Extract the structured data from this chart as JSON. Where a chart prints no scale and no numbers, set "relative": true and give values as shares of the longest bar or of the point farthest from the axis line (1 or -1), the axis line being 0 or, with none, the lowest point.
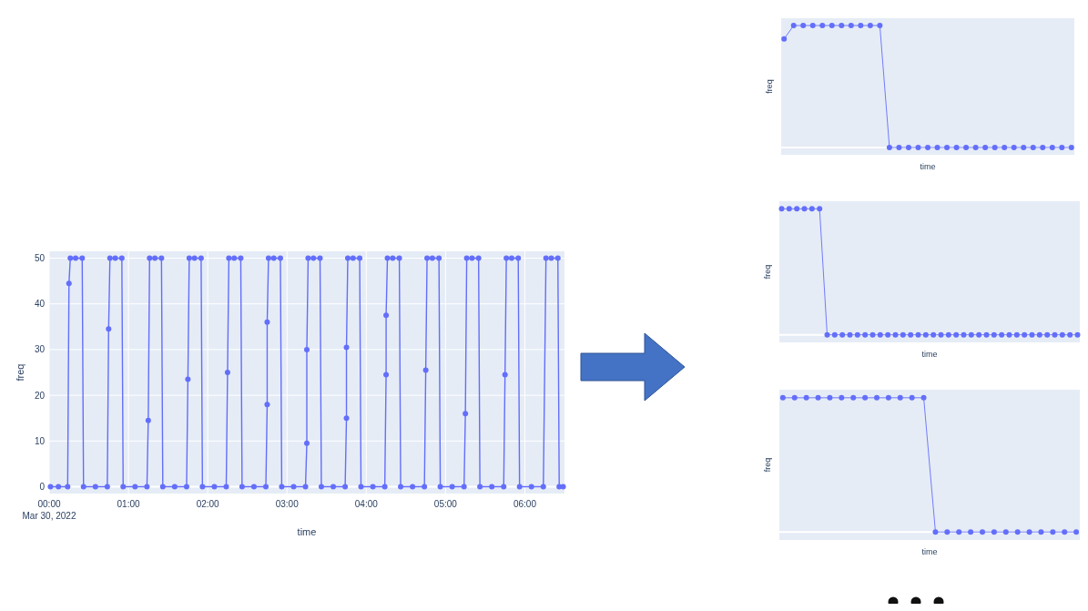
{
  "chart_data": [
    {
      "type": "line",
      "xlabel": "time",
      "ylabel": "freq",
      "marker": "circle",
      "grid": true,
      "xlim": [
        "2022-03-30T00:00",
        "2022-03-30T06:30"
      ],
      "xticks": [
        {
          "value": "2022-03-30T00:00",
          "label": "00:00\nMar 30, 2022"
        },
        {
          "value": "2022-03-30T01:00",
          "label": "01:00"
        },
        {
          "value": "2022-03-30T02:00",
          "label": "02:00"
        },
        {
          "value": "2022-03-30T03:00",
          "label": "03:00"
        },
        {
          "value": "2022-03-30T04:00",
          "label": "04:00"
        },
        {
          "value": "2022-03-30T05:00",
          "label": "05:00"
        },
        {
          "value": "2022-03-30T06:00",
          "label": "06:00"
        }
      ],
      "ylim": [
        -1.5,
        51.5
      ],
      "yticks": [
        0,
        10,
        20,
        30,
        40,
        50
      ],
      "series": [
        {
          "color": "#636efa",
          "x": [
            "2022-03-30T00:01",
            "2022-03-30T00:07",
            "2022-03-30T00:14",
            "2022-03-30T00:15",
            "2022-03-30T00:16",
            "2022-03-30T00:20",
            "2022-03-30T00:25",
            "2022-03-30T00:26",
            "2022-03-30T00:35",
            "2022-03-30T00:44",
            "2022-03-30T00:45",
            "2022-03-30T00:46",
            "2022-03-30T00:50",
            "2022-03-30T00:55",
            "2022-03-30T00:56",
            "2022-03-30T01:05",
            "2022-03-30T01:14",
            "2022-03-30T01:15",
            "2022-03-30T01:16",
            "2022-03-30T01:20",
            "2022-03-30T01:25",
            "2022-03-30T01:26",
            "2022-03-30T01:35",
            "2022-03-30T01:44",
            "2022-03-30T01:45",
            "2022-03-30T01:46",
            "2022-03-30T01:50",
            "2022-03-30T01:55",
            "2022-03-30T01:56",
            "2022-03-30T02:05",
            "2022-03-30T02:14",
            "2022-03-30T02:15",
            "2022-03-30T02:16",
            "2022-03-30T02:20",
            "2022-03-30T02:25",
            "2022-03-30T02:26",
            "2022-03-30T02:35",
            "2022-03-30T02:44",
            "2022-03-30T02:45",
            "2022-03-30T02:45",
            "2022-03-30T02:46",
            "2022-03-30T02:50",
            "2022-03-30T02:55",
            "2022-03-30T02:56",
            "2022-03-30T03:05",
            "2022-03-30T03:14",
            "2022-03-30T03:15",
            "2022-03-30T03:15",
            "2022-03-30T03:16",
            "2022-03-30T03:20",
            "2022-03-30T03:25",
            "2022-03-30T03:26",
            "2022-03-30T03:35",
            "2022-03-30T03:44",
            "2022-03-30T03:45",
            "2022-03-30T03:45",
            "2022-03-30T03:46",
            "2022-03-30T03:50",
            "2022-03-30T03:55",
            "2022-03-30T03:56",
            "2022-03-30T04:05",
            "2022-03-30T04:14",
            "2022-03-30T04:15",
            "2022-03-30T04:15",
            "2022-03-30T04:16",
            "2022-03-30T04:20",
            "2022-03-30T04:25",
            "2022-03-30T04:26",
            "2022-03-30T04:35",
            "2022-03-30T04:44",
            "2022-03-30T04:45",
            "2022-03-30T04:46",
            "2022-03-30T04:50",
            "2022-03-30T04:55",
            "2022-03-30T04:56",
            "2022-03-30T05:05",
            "2022-03-30T05:14",
            "2022-03-30T05:15",
            "2022-03-30T05:16",
            "2022-03-30T05:20",
            "2022-03-30T05:25",
            "2022-03-30T05:26",
            "2022-03-30T05:35",
            "2022-03-30T05:44",
            "2022-03-30T05:45",
            "2022-03-30T05:46",
            "2022-03-30T05:50",
            "2022-03-30T05:55",
            "2022-03-30T05:56",
            "2022-03-30T06:05",
            "2022-03-30T06:14",
            "2022-03-30T06:16",
            "2022-03-30T06:20",
            "2022-03-30T06:25",
            "2022-03-30T06:26",
            "2022-03-30T06:29"
          ],
          "values": [
            0,
            0,
            0,
            44.5,
            50,
            50,
            50,
            0,
            0,
            0,
            34.5,
            50,
            50,
            50,
            0,
            0,
            0,
            14.5,
            50,
            50,
            50,
            0,
            0,
            0,
            23.5,
            50,
            50,
            50,
            0,
            0,
            0,
            25,
            50,
            50,
            50,
            0,
            0,
            0,
            18,
            36,
            50,
            50,
            50,
            0,
            0,
            0,
            9.5,
            30,
            50,
            50,
            50,
            0,
            0,
            0,
            15,
            30.5,
            50,
            50,
            50,
            0,
            0,
            0,
            24.5,
            37.5,
            50,
            50,
            50,
            0,
            0,
            0,
            25.5,
            50,
            50,
            50,
            0,
            0,
            0,
            16,
            50,
            50,
            50,
            0,
            0,
            0,
            24.5,
            50,
            50,
            50,
            0,
            0,
            0,
            50,
            50,
            50,
            0,
            0
          ]
        }
      ]
    },
    {
      "type": "line",
      "xlabel": "time",
      "ylabel": "freq",
      "marker": "circle",
      "relative": true,
      "categories": [
        null,
        null,
        null,
        null,
        null,
        null,
        null,
        null,
        null,
        null,
        null,
        null,
        null,
        null,
        null,
        null,
        null,
        null,
        null,
        null,
        null,
        null,
        null,
        null,
        null,
        null,
        null,
        null,
        null,
        null,
        null
      ],
      "series": [
        {
          "color": "#636efa",
          "values": [
            0.89,
            1,
            1,
            1,
            1,
            1,
            1,
            1,
            1,
            1,
            1,
            0,
            0,
            0,
            0,
            0,
            0,
            0,
            0,
            0,
            0,
            0,
            0,
            0,
            0,
            0,
            0,
            0,
            0,
            0,
            0
          ]
        }
      ]
    },
    {
      "type": "line",
      "xlabel": "time",
      "ylabel": "freq",
      "marker": "circle",
      "relative": true,
      "categories": [
        null,
        null,
        null,
        null,
        null,
        null,
        null,
        null,
        null,
        null,
        null,
        null,
        null,
        null,
        null,
        null,
        null,
        null,
        null,
        null,
        null,
        null,
        null,
        null,
        null,
        null,
        null,
        null,
        null,
        null,
        null,
        null,
        null,
        null,
        null,
        null,
        null,
        null,
        null,
        null
      ],
      "series": [
        {
          "color": "#636efa",
          "values": [
            1,
            1,
            1,
            1,
            1,
            1,
            0,
            0,
            0,
            0,
            0,
            0,
            0,
            0,
            0,
            0,
            0,
            0,
            0,
            0,
            0,
            0,
            0,
            0,
            0,
            0,
            0,
            0,
            0,
            0,
            0,
            0,
            0,
            0,
            0,
            0,
            0,
            0,
            0,
            0
          ]
        }
      ]
    },
    {
      "type": "line",
      "xlabel": "time",
      "ylabel": "freq",
      "marker": "circle",
      "relative": true,
      "categories": [
        null,
        null,
        null,
        null,
        null,
        null,
        null,
        null,
        null,
        null,
        null,
        null,
        null,
        null,
        null,
        null,
        null,
        null,
        null,
        null,
        null,
        null,
        null,
        null,
        null,
        null
      ],
      "series": [
        {
          "color": "#636efa",
          "values": [
            1,
            1,
            1,
            1,
            1,
            1,
            1,
            1,
            1,
            1,
            1,
            1,
            1,
            0,
            0,
            0,
            0,
            0,
            0,
            0,
            0,
            0,
            0,
            0,
            0,
            0
          ]
        }
      ]
    }
  ]
}
